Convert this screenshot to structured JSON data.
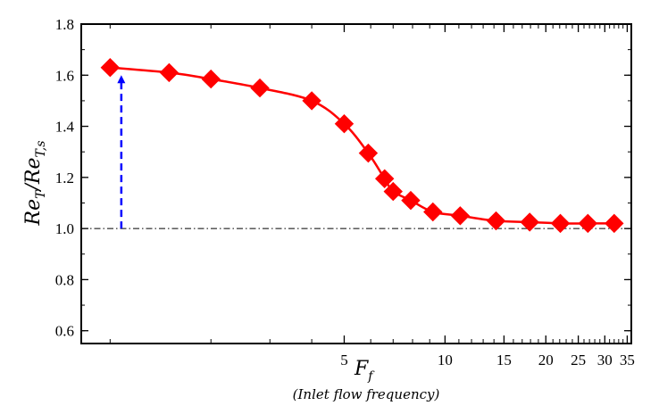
{
  "chart_data": {
    "type": "line",
    "title": "",
    "xlabel": "F",
    "xlabel_sub": "f",
    "xlabel_note": "(Inlet flow frequency)",
    "ylabel_main": "Re",
    "ylabel_num_sub": "T",
    "ylabel_den_sub": "T,s",
    "x_scale": "log",
    "xlim": [
      0.82,
      36
    ],
    "ylim": [
      0.55,
      1.8
    ],
    "x_ticks": [
      5,
      10,
      15,
      20,
      25,
      30,
      35
    ],
    "x_tick_labels": [
      "5",
      "10",
      "15",
      "20",
      "25",
      "30",
      "35"
    ],
    "y_ticks": [
      0.6,
      0.8,
      1.0,
      1.2,
      1.4,
      1.6,
      1.8
    ],
    "y_tick_labels": [
      "0.6",
      "0.8",
      "1.0",
      "1.2",
      "1.4",
      "1.6",
      "1.8"
    ],
    "grid": false,
    "legend": "none",
    "series": [
      {
        "color": "#ff0000",
        "marker": "diamond",
        "x": [
          1.0,
          1.5,
          2.0,
          2.8,
          4.0,
          5.0,
          5.9,
          6.6,
          7.0,
          7.9,
          9.2,
          11.1,
          14.2,
          17.9,
          22.1,
          26.7,
          32.0
        ],
        "y": [
          1.63,
          1.61,
          1.585,
          1.55,
          1.5,
          1.41,
          1.295,
          1.195,
          1.145,
          1.11,
          1.065,
          1.05,
          1.03,
          1.025,
          1.02,
          1.02,
          1.02
        ]
      }
    ],
    "reference_line": {
      "y": 1.0,
      "style": "dash-dot",
      "color": "#000000"
    },
    "annotation_arrow": {
      "x": 1.08,
      "y_from": 1.0,
      "y_to": 1.6,
      "style": "dashed",
      "color": "#0000ff"
    }
  }
}
